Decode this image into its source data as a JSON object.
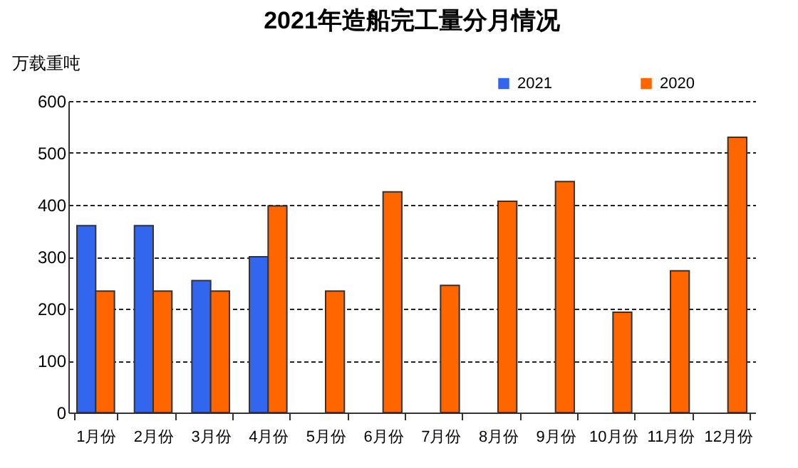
{
  "chart_data": {
    "type": "bar",
    "title": "2021年造船完工量分月情况",
    "ylabel": "万载重吨",
    "categories": [
      "1月份",
      "2月份",
      "3月份",
      "4月份",
      "5月份",
      "6月份",
      "7月份",
      "8月份",
      "9月份",
      "10月份",
      "11月份",
      "12月份"
    ],
    "series": [
      {
        "name": "2021",
        "color": "#3366ee",
        "values": [
          360,
          360,
          254,
          300,
          null,
          null,
          null,
          null,
          null,
          null,
          null,
          null
        ]
      },
      {
        "name": "2020",
        "color": "#ff6600",
        "values": [
          234,
          234,
          234,
          398,
          234,
          425,
          245,
          407,
          445,
          193,
          273,
          530
        ]
      }
    ],
    "ylim": [
      0,
      600
    ],
    "yticks": [
      0,
      100,
      200,
      300,
      400,
      500,
      600
    ],
    "grid": "y",
    "legend": "top right"
  }
}
